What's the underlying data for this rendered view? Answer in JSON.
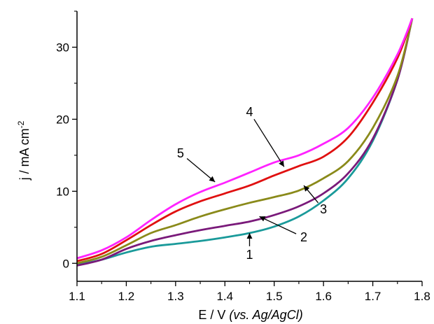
{
  "chart_data": {
    "type": "line",
    "title": "",
    "xlabel": {
      "main": "E / V ",
      "italic": "(vs. Ag/AgCl)"
    },
    "ylabel": {
      "main": "j / mA cm",
      "sup": "-2"
    },
    "xlim": [
      1.1,
      1.8
    ],
    "ylim": [
      -2.5,
      35
    ],
    "x_ticks": [
      1.1,
      1.2,
      1.3,
      1.4,
      1.5,
      1.6,
      1.7,
      1.8
    ],
    "x_tick_labels": [
      "1.1",
      "1.2",
      "1.3",
      "1.4",
      "1.5",
      "1.6",
      "1.7",
      "1.8"
    ],
    "y_ticks": [
      0,
      10,
      20,
      30
    ],
    "y_tick_labels": [
      "0",
      "10",
      "20",
      "30"
    ],
    "grid": false,
    "series": [
      {
        "name": "1",
        "color": "#1a9a9a",
        "points": [
          [
            1.1,
            -0.2
          ],
          [
            1.15,
            0.5
          ],
          [
            1.2,
            1.5
          ],
          [
            1.25,
            2.3
          ],
          [
            1.3,
            2.7
          ],
          [
            1.35,
            3.1
          ],
          [
            1.4,
            3.6
          ],
          [
            1.45,
            4.2
          ],
          [
            1.5,
            5.1
          ],
          [
            1.55,
            6.5
          ],
          [
            1.6,
            8.7
          ],
          [
            1.65,
            11.8
          ],
          [
            1.7,
            17.0
          ],
          [
            1.75,
            25.5
          ],
          [
            1.78,
            34.0
          ]
        ],
        "label_pos": [
          1.45,
          1.2
        ],
        "arrow_tip": [
          1.45,
          4.2
        ]
      },
      {
        "name": "2",
        "color": "#7a1a7a",
        "points": [
          [
            1.1,
            -0.3
          ],
          [
            1.15,
            0.5
          ],
          [
            1.2,
            2.0
          ],
          [
            1.25,
            3.1
          ],
          [
            1.3,
            3.9
          ],
          [
            1.35,
            4.6
          ],
          [
            1.4,
            5.2
          ],
          [
            1.45,
            5.8
          ],
          [
            1.5,
            6.7
          ],
          [
            1.55,
            7.9
          ],
          [
            1.6,
            9.7
          ],
          [
            1.65,
            12.5
          ],
          [
            1.7,
            17.3
          ],
          [
            1.75,
            25.5
          ],
          [
            1.78,
            34.0
          ]
        ],
        "label_pos": [
          1.56,
          3.6
        ],
        "arrow_tip": [
          1.47,
          6.5
        ]
      },
      {
        "name": "3",
        "color": "#8a8a1a",
        "points": [
          [
            1.1,
            0.0
          ],
          [
            1.15,
            0.9
          ],
          [
            1.2,
            2.5
          ],
          [
            1.25,
            4.2
          ],
          [
            1.3,
            5.3
          ],
          [
            1.35,
            6.5
          ],
          [
            1.4,
            7.5
          ],
          [
            1.45,
            8.4
          ],
          [
            1.5,
            9.2
          ],
          [
            1.55,
            10.1
          ],
          [
            1.6,
            11.8
          ],
          [
            1.65,
            14.2
          ],
          [
            1.7,
            18.8
          ],
          [
            1.75,
            26.0
          ],
          [
            1.78,
            34.0
          ]
        ],
        "label_pos": [
          1.6,
          7.5
        ],
        "arrow_tip": [
          1.56,
          10.8
        ]
      },
      {
        "name": "4",
        "color": "#e01010",
        "points": [
          [
            1.1,
            0.3
          ],
          [
            1.15,
            1.3
          ],
          [
            1.2,
            3.2
          ],
          [
            1.25,
            5.3
          ],
          [
            1.3,
            7.2
          ],
          [
            1.35,
            8.6
          ],
          [
            1.4,
            9.7
          ],
          [
            1.45,
            10.8
          ],
          [
            1.5,
            12.2
          ],
          [
            1.55,
            13.5
          ],
          [
            1.6,
            14.8
          ],
          [
            1.65,
            17.5
          ],
          [
            1.7,
            22.3
          ],
          [
            1.75,
            28.5
          ],
          [
            1.78,
            34.0
          ]
        ],
        "label_pos": [
          1.45,
          21.0
        ],
        "arrow_tip": [
          1.52,
          13.4
        ]
      },
      {
        "name": "5",
        "color": "#ff22ff",
        "points": [
          [
            1.1,
            0.7
          ],
          [
            1.15,
            1.8
          ],
          [
            1.2,
            3.6
          ],
          [
            1.25,
            6.0
          ],
          [
            1.3,
            8.2
          ],
          [
            1.35,
            9.9
          ],
          [
            1.4,
            11.2
          ],
          [
            1.45,
            12.6
          ],
          [
            1.5,
            14.0
          ],
          [
            1.55,
            15.0
          ],
          [
            1.6,
            16.6
          ],
          [
            1.65,
            18.8
          ],
          [
            1.7,
            23.0
          ],
          [
            1.75,
            29.0
          ],
          [
            1.78,
            34.0
          ]
        ],
        "label_pos": [
          1.31,
          15.3
        ],
        "arrow_tip": [
          1.38,
          11.3
        ]
      }
    ]
  }
}
